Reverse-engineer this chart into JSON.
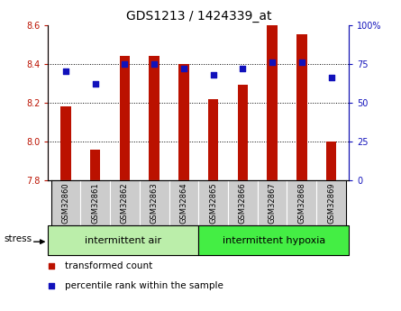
{
  "title": "GDS1213 / 1424339_at",
  "samples": [
    "GSM32860",
    "GSM32861",
    "GSM32862",
    "GSM32863",
    "GSM32864",
    "GSM32865",
    "GSM32866",
    "GSM32867",
    "GSM32868",
    "GSM32869"
  ],
  "red_values": [
    8.18,
    7.96,
    8.44,
    8.44,
    8.4,
    8.22,
    8.29,
    8.6,
    8.55,
    8.0
  ],
  "blue_values": [
    70,
    62,
    75,
    75,
    72,
    68,
    72,
    76,
    76,
    66
  ],
  "ymin": 7.8,
  "ymax": 8.6,
  "yticks_left": [
    7.8,
    8.0,
    8.2,
    8.4,
    8.6
  ],
  "yticks_right": [
    0,
    25,
    50,
    75,
    100
  ],
  "group1_label": "intermittent air",
  "group2_label": "intermittent hypoxia",
  "stress_label": "stress",
  "legend_red_label": "transformed count",
  "legend_blue_label": "percentile rank within the sample",
  "bar_color": "#bb1100",
  "dot_color": "#1111bb",
  "group1_bg": "#bbeeaa",
  "group2_bg": "#44ee44",
  "tick_bg": "#cccccc",
  "bar_width": 0.35
}
